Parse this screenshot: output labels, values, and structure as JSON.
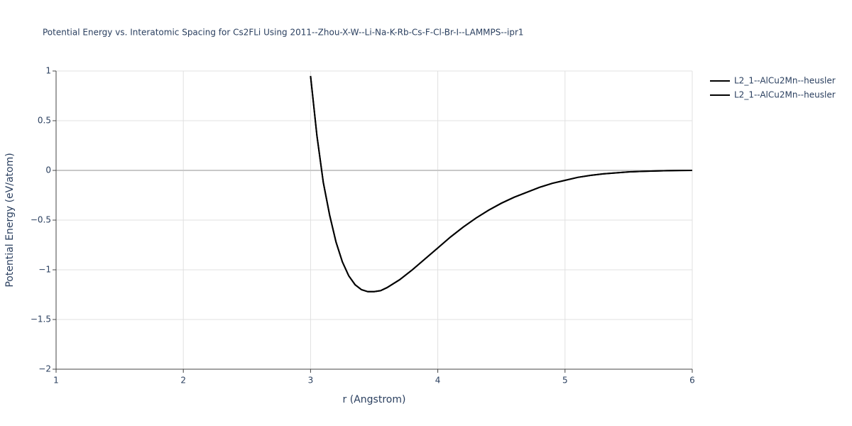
{
  "chart_data": {
    "type": "line",
    "title": "Potential Energy vs. Interatomic Spacing for Cs2FLi Using 2011--Zhou-X-W--Li-Na-K-Rb-Cs-F-Cl-Br-I--LAMMPS--ipr1",
    "x_label": "r (Angstrom)",
    "y_label": "Potential Energy (eV/atom)",
    "x": [
      3.0,
      3.05,
      3.1,
      3.15,
      3.2,
      3.25,
      3.3,
      3.35,
      3.4,
      3.45,
      3.5,
      3.55,
      3.6,
      3.7,
      3.8,
      3.9,
      4.0,
      4.1,
      4.2,
      4.3,
      4.4,
      4.5,
      4.6,
      4.7,
      4.8,
      4.9,
      5.0,
      5.1,
      5.2,
      5.3,
      5.4,
      5.5,
      5.6,
      5.7,
      5.8,
      5.9,
      6.0
    ],
    "series": [
      {
        "name": "L2_1--AlCu2Mn--heusler",
        "color": "#000000",
        "values": [
          0.95,
          0.35,
          -0.12,
          -0.45,
          -0.72,
          -0.92,
          -1.06,
          -1.15,
          -1.2,
          -1.22,
          -1.22,
          -1.21,
          -1.18,
          -1.1,
          -1.0,
          -0.89,
          -0.78,
          -0.67,
          -0.57,
          -0.48,
          -0.4,
          -0.33,
          -0.27,
          -0.22,
          -0.17,
          -0.13,
          -0.1,
          -0.07,
          -0.05,
          -0.035,
          -0.025,
          -0.015,
          -0.01,
          -0.006,
          -0.003,
          -0.001,
          0
        ]
      },
      {
        "name": "L2_1--AlCu2Mn--heusler",
        "color": "#000000",
        "values": [
          0.95,
          0.35,
          -0.12,
          -0.45,
          -0.72,
          -0.92,
          -1.06,
          -1.15,
          -1.2,
          -1.22,
          -1.22,
          -1.21,
          -1.18,
          -1.1,
          -1.0,
          -0.89,
          -0.78,
          -0.67,
          -0.57,
          -0.48,
          -0.4,
          -0.33,
          -0.27,
          -0.22,
          -0.17,
          -0.13,
          -0.1,
          -0.07,
          -0.05,
          -0.035,
          -0.025,
          -0.015,
          -0.01,
          -0.006,
          -0.003,
          -0.001,
          0
        ]
      }
    ],
    "xlim": [
      1,
      6
    ],
    "ylim": [
      -2,
      1
    ],
    "xticks": [
      1,
      2,
      3,
      4,
      5,
      6
    ],
    "yticks": [
      1,
      0.5,
      0,
      {
        "value": -0.5,
        "label": "−0.5"
      },
      {
        "value": -1,
        "label": "−1"
      },
      {
        "value": -1.5,
        "label": "−1.5"
      },
      {
        "value": -2,
        "label": "−2"
      }
    ],
    "grid": true,
    "legend": "top-right"
  }
}
